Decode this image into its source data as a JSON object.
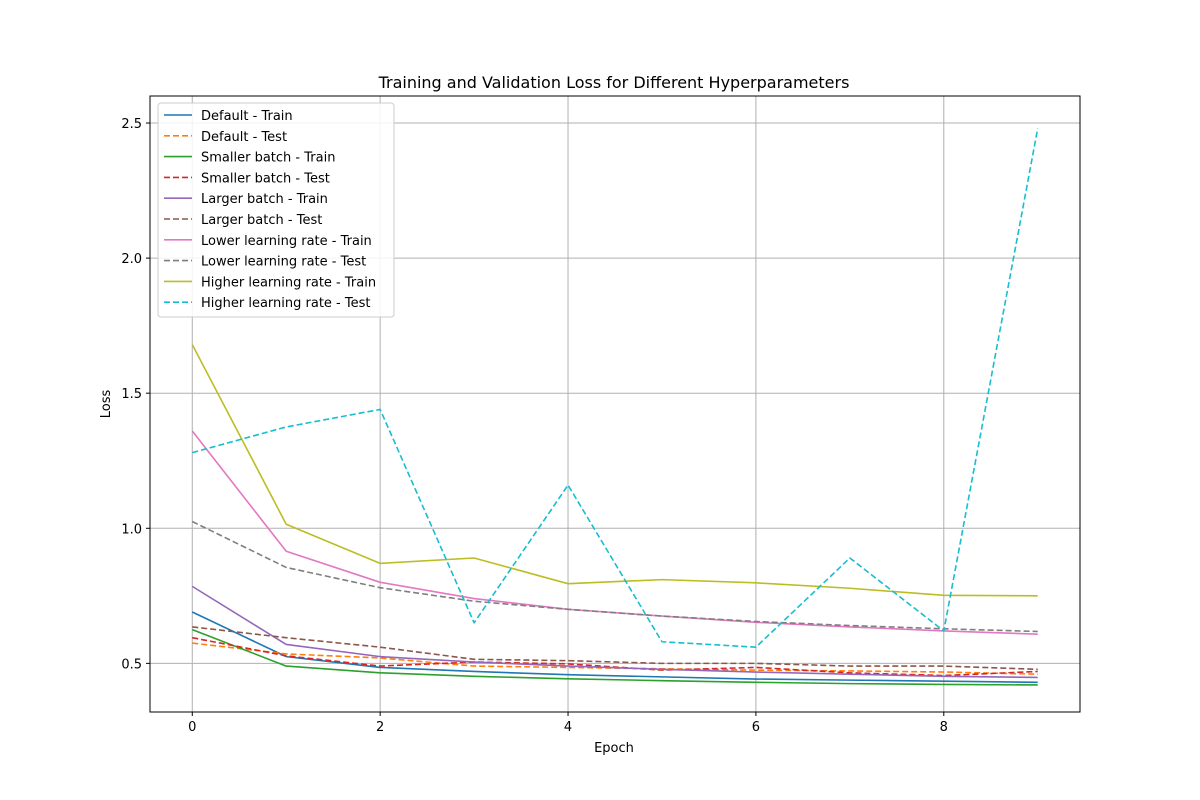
{
  "chart_data": {
    "type": "line",
    "title": "Training and Validation Loss for Different Hyperparameters",
    "xlabel": "Epoch",
    "ylabel": "Loss",
    "xlim": [
      -0.45,
      9.45
    ],
    "ylim": [
      0.32,
      2.6
    ],
    "xticks": [
      0,
      2,
      4,
      6,
      8
    ],
    "yticks": [
      0.5,
      1.0,
      1.5,
      2.0,
      2.5
    ],
    "xtick_labels": [
      "0",
      "2",
      "4",
      "6",
      "8"
    ],
    "ytick_labels": [
      "0.5",
      "1.0",
      "1.5",
      "2.0",
      "2.5"
    ],
    "grid": true,
    "legend_position": "upper-left",
    "x": [
      0,
      1,
      2,
      3,
      4,
      5,
      6,
      7,
      8,
      9
    ],
    "series": [
      {
        "name": "Default - Train",
        "color": "#1f77b4",
        "dash": "solid",
        "values": [
          0.69,
          0.525,
          0.485,
          0.47,
          0.458,
          0.45,
          0.442,
          0.438,
          0.434,
          0.43
        ]
      },
      {
        "name": "Default - Test",
        "color": "#ff7f0e",
        "dash": "dashed",
        "values": [
          0.575,
          0.535,
          0.52,
          0.49,
          0.485,
          0.48,
          0.475,
          0.472,
          0.468,
          0.46
        ]
      },
      {
        "name": "Smaller batch - Train",
        "color": "#2ca02c",
        "dash": "solid",
        "values": [
          0.625,
          0.49,
          0.465,
          0.452,
          0.443,
          0.436,
          0.43,
          0.425,
          0.422,
          0.42
        ]
      },
      {
        "name": "Smaller batch - Test",
        "color": "#d62728",
        "dash": "dashed",
        "values": [
          0.595,
          0.528,
          0.49,
          0.505,
          0.498,
          0.475,
          0.485,
          0.465,
          0.455,
          0.47
        ]
      },
      {
        "name": "Larger batch - Train",
        "color": "#9467bd",
        "dash": "solid",
        "values": [
          0.785,
          0.57,
          0.525,
          0.505,
          0.49,
          0.478,
          0.468,
          0.46,
          0.452,
          0.448
        ]
      },
      {
        "name": "Larger batch - Test",
        "color": "#8c564b",
        "dash": "dashed",
        "values": [
          0.635,
          0.595,
          0.56,
          0.515,
          0.51,
          0.5,
          0.5,
          0.49,
          0.49,
          0.478
        ]
      },
      {
        "name": "Lower learning rate - Train",
        "color": "#e377c2",
        "dash": "solid",
        "values": [
          1.36,
          0.915,
          0.8,
          0.74,
          0.7,
          0.675,
          0.652,
          0.635,
          0.62,
          0.608
        ]
      },
      {
        "name": "Lower learning rate - Test",
        "color": "#7f7f7f",
        "dash": "dashed",
        "values": [
          1.025,
          0.855,
          0.78,
          0.73,
          0.7,
          0.675,
          0.655,
          0.64,
          0.628,
          0.618
        ]
      },
      {
        "name": "Higher learning rate - Train",
        "color": "#bcbd22",
        "dash": "solid",
        "values": [
          1.68,
          1.015,
          0.87,
          0.89,
          0.795,
          0.81,
          0.798,
          0.778,
          0.752,
          0.75
        ]
      },
      {
        "name": "Higher learning rate - Test",
        "color": "#17becf",
        "dash": "dashed",
        "values": [
          1.28,
          1.375,
          1.44,
          0.65,
          1.16,
          0.58,
          0.56,
          0.89,
          0.62,
          2.48
        ]
      }
    ]
  }
}
